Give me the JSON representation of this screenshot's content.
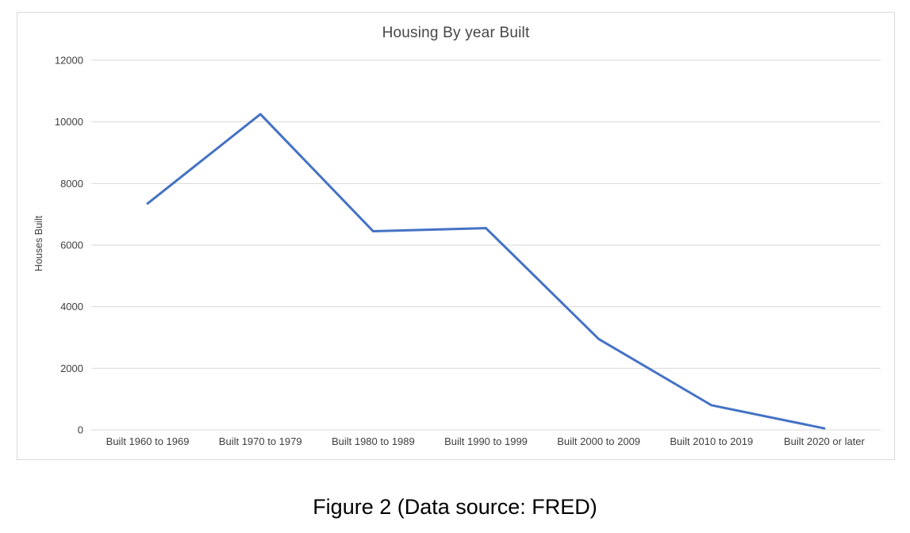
{
  "caption": "Figure 2 (Data source: FRED)",
  "chart_data": {
    "type": "line",
    "title": "Housing By year Built",
    "xlabel": "",
    "ylabel": "Houses Built",
    "categories": [
      "Built 1960 to 1969",
      "Built 1970 to 1979",
      "Built 1980 to 1989",
      "Built 1990 to 1999",
      "Built 2000 to 2009",
      "Built 2010 to 2019",
      "Built 2020 or later"
    ],
    "series": [
      {
        "name": "Houses Built",
        "values": [
          7350,
          10250,
          6450,
          6550,
          2950,
          800,
          50
        ]
      }
    ],
    "ylim": [
      0,
      12000
    ],
    "yticks": [
      0,
      2000,
      4000,
      6000,
      8000,
      10000,
      12000
    ],
    "grid": true,
    "legend_position": "none",
    "line_color": "#4472C4",
    "gridline_color": "#D9D9D9",
    "axis_text_color": "#404040",
    "title_color": "#464646",
    "line_width": 3
  }
}
